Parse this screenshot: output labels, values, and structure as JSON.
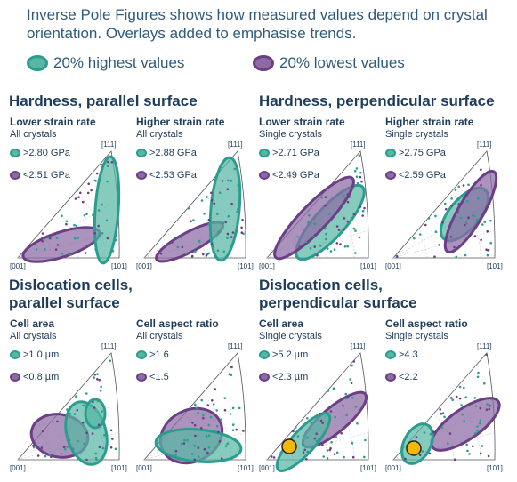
{
  "intro_text": "Inverse Pole Figures shows how measured values depend on crystal orientation. Overlays added to emphasise trends.",
  "legend": {
    "high_label": "20% highest values",
    "low_label": "20% lowest values"
  },
  "colors": {
    "high": "#2a9d8f",
    "high_fill": "#58b7a3",
    "low": "#6b3f86",
    "low_fill": "#8c6aa4",
    "text": "#1f3c5a",
    "intro_text": "#2f5b7c",
    "marker": "#f5b800"
  },
  "sections": [
    {
      "title": "Hardness, parallel surface"
    },
    {
      "title": "Hardness, perpendicular surface"
    },
    {
      "title_line1": "Dislocation cells,",
      "title_line2": "parallel surface"
    },
    {
      "title_line1": "Dislocation cells,",
      "title_line2": "perpendicular surface"
    }
  ],
  "ipf_corner_labels": {
    "c001": "[001]",
    "c101": "[101]",
    "c111": "[111]"
  },
  "panels": [
    {
      "title": "Lower strain rate",
      "sample": "All crystals",
      "high": ">2.80 GPa",
      "low": "<2.51 GPa"
    },
    {
      "title": "Higher strain rate",
      "sample": "All crystals",
      "high": ">2.88 GPa",
      "low": "<2.53 GPa"
    },
    {
      "title": "Lower strain rate",
      "sample": "Single crystals",
      "high": ">2.71 GPa",
      "low": "<2.49 GPa"
    },
    {
      "title": "Higher strain rate",
      "sample": "Single crystals",
      "high": ">2.75 GPa",
      "low": "<2.59 GPa"
    },
    {
      "title": "Cell area",
      "sample": "All crystals",
      "high": ">1.0 µm",
      "low": "<0.8 µm"
    },
    {
      "title": "Cell aspect ratio",
      "sample": "All crystals",
      "high": ">1.6",
      "low": "<1.5"
    },
    {
      "title": "Cell area",
      "sample": "Single crystals",
      "high": ">5.2 µm",
      "low": "<2.3 µm"
    },
    {
      "title": "Cell aspect ratio",
      "sample": "Single crystals",
      "high": ">4.3",
      "low": "<2.2"
    }
  ]
}
